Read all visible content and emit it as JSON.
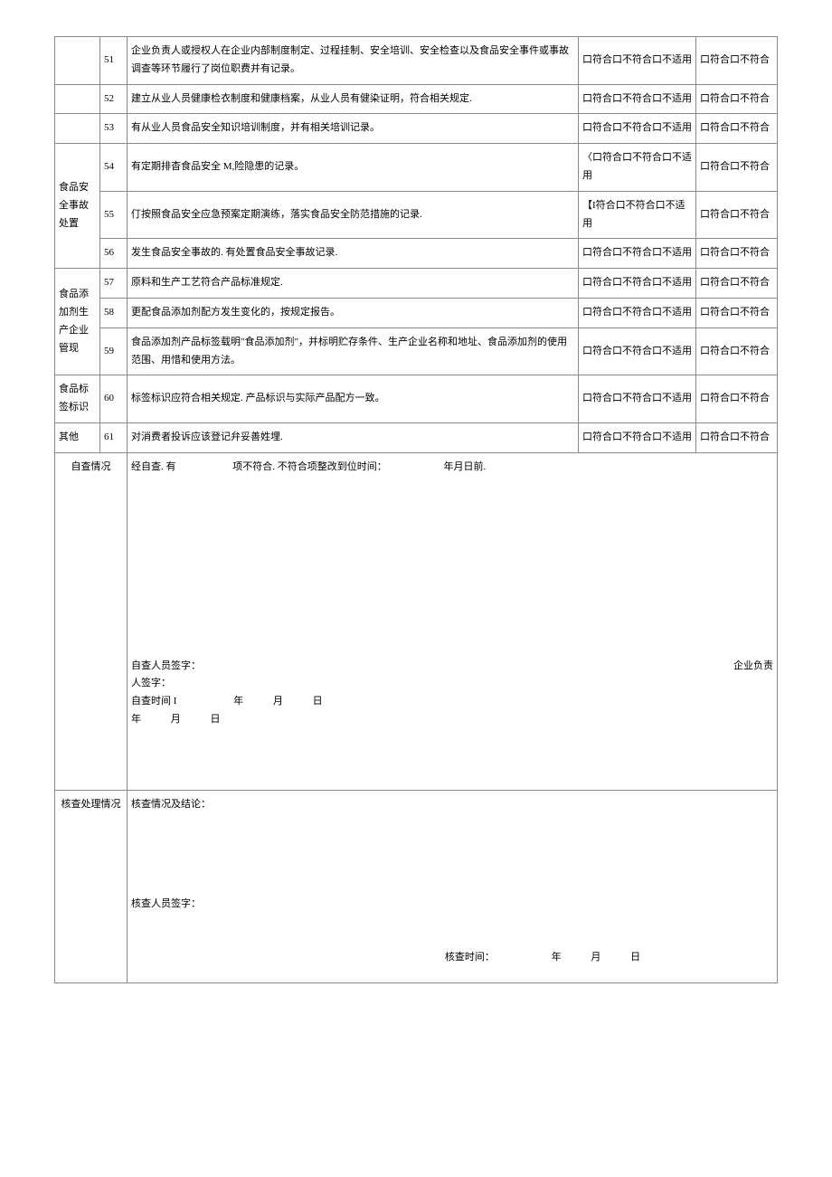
{
  "rows": [
    {
      "cat": "",
      "num": "51",
      "desc": "企业负责人或授权人在企业内部制度制定、过程挂制、安全培训、安全检查以及食品安全事件或事故调查等环节履行了岗位职费并有记录。",
      "c1": "口符合口不符合口不适用",
      "c2": "口符合口不符合"
    },
    {
      "cat": "",
      "num": "52",
      "desc": "建立从业人员健康检衣制度和健康档案，从业人员有健染证明，符合相关规定.",
      "c1": "口符合口不符合口不适用",
      "c2": "口符合口不符合"
    },
    {
      "cat": "",
      "num": "53",
      "desc": "有从业人员食品安全知识培训制度，并有相关培训记录。",
      "c1": "口符合口不符合口不适用",
      "c2": "口符合口不符合"
    },
    {
      "cat": "食品安全事故处置",
      "catspan": 3,
      "num": "54",
      "desc": "有定期排杳食品安全 M,险隐患的记录。",
      "c1": "〈口符合口不符合口不适用",
      "c2": "口符合口不符合"
    },
    {
      "num": "55",
      "desc": "仃按照食品安全应急预案定期演练，落实食品安全防范措施的记录.",
      "c1": "【I符合口不符合口不适用",
      "c2": "口符合口不符合"
    },
    {
      "num": "56",
      "desc": "发生食品安全事故的. 有处置食品安全事故记录.",
      "c1": "口符合口不符合口不适用",
      "c2": "口符合口不符合"
    },
    {
      "cat": "食品添加剂生产企业管现",
      "catspan": 3,
      "num": "57",
      "desc": "原料和生产工艺符合产品标准规定.",
      "c1": "口符合口不符合口不适用",
      "c2": "口符合口不符合"
    },
    {
      "num": "58",
      "desc": "更配食品添加剂配方发生变化的，按规定报告。",
      "c1": "口符合口不符合口不适用",
      "c2": "口符合口不符合"
    },
    {
      "num": "59",
      "desc": "食品添加剂产品标签载明\"食品添加剂\"，并标明贮存条件、生产企业名称和地址、食品添加剂的使用范围、用惜和使用方法。",
      "c1": "口符合口不符合口不适用",
      "c2": "口符合口不符合"
    },
    {
      "cat": "食品标签标识",
      "catspan": 1,
      "num": "60",
      "desc": "标签标识应符合相关规定. 产品标识与实际产品配方一致。",
      "c1": "口符合口不符合口不适用",
      "c2": "口符合口不符合"
    },
    {
      "cat": "其他",
      "catspan": 1,
      "num": "61",
      "desc": "对消费者投诉应该登记弁妥善姓埋.",
      "c1": "口符合口不符合口不适用",
      "c2": "口符合口不符合"
    }
  ],
  "selfcheck": {
    "label": "自查情况",
    "line1_a": "经自查. 有",
    "line1_b": "项不符合. 不符合项整改到位时间：",
    "line1_c": "年月日前.",
    "sigPerson": "自查人员签字：",
    "sigOwnerA": "企业负责",
    "sigOwnerB": "人签字：",
    "timeA": "自查时间 I",
    "y": "年",
    "m": "月",
    "d": "日"
  },
  "review": {
    "label": "核查处理情况",
    "conclusion": "核查情况及结论：",
    "sig": "核查人员签字：",
    "time": "核查时间：",
    "y": "年",
    "m": "月",
    "d": "日"
  }
}
